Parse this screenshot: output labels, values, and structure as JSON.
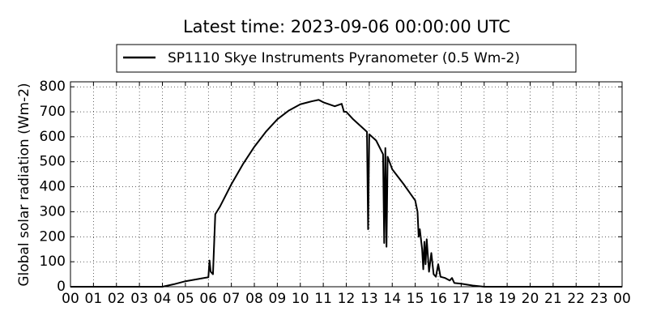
{
  "chart_data": {
    "type": "line",
    "title": "Latest time: 2023-09-06 00:00:00 UTC",
    "y_label": "Global solar radiation (Wm-2)",
    "x": [
      0,
      4.0,
      4.5,
      5.0,
      5.5,
      6.0,
      6.05,
      6.1,
      6.2,
      6.3,
      6.5,
      7,
      7.5,
      8,
      8.5,
      9,
      9.5,
      10,
      10.5,
      10.8,
      11,
      11.5,
      11.8,
      11.9,
      12,
      12.3,
      12.6,
      12.9,
      12.95,
      13.0,
      13.3,
      13.6,
      13.65,
      13.7,
      13.75,
      13.8,
      14,
      14.5,
      15,
      15.1,
      15.15,
      15.2,
      15.3,
      15.35,
      15.4,
      15.45,
      15.5,
      15.6,
      15.7,
      15.8,
      15.9,
      16,
      16.1,
      16.3,
      16.5,
      16.6,
      16.7,
      17,
      17.5,
      18,
      24
    ],
    "series": [
      {
        "name": "SP1110 Skye Instruments Pyranometer (0.5 Wm-2)",
        "color": "#000000",
        "values": [
          0,
          0,
          10,
          22,
          30,
          38,
          105,
          60,
          50,
          290,
          320,
          410,
          490,
          560,
          620,
          670,
          705,
          730,
          742,
          748,
          738,
          722,
          732,
          700,
          700,
          670,
          645,
          620,
          230,
          610,
          585,
          530,
          175,
          555,
          160,
          520,
          470,
          410,
          345,
          300,
          200,
          230,
          150,
          70,
          180,
          90,
          190,
          60,
          135,
          50,
          40,
          90,
          40,
          35,
          25,
          35,
          15,
          12,
          5,
          0,
          0
        ]
      }
    ],
    "xlim": [
      0,
      24
    ],
    "xticks": [
      {
        "value": 0,
        "label": "00"
      },
      {
        "value": 1,
        "label": "01"
      },
      {
        "value": 2,
        "label": "02"
      },
      {
        "value": 3,
        "label": "03"
      },
      {
        "value": 4,
        "label": "04"
      },
      {
        "value": 5,
        "label": "05"
      },
      {
        "value": 6,
        "label": "06"
      },
      {
        "value": 7,
        "label": "07"
      },
      {
        "value": 8,
        "label": "08"
      },
      {
        "value": 9,
        "label": "09"
      },
      {
        "value": 10,
        "label": "10"
      },
      {
        "value": 11,
        "label": "11"
      },
      {
        "value": 12,
        "label": "12"
      },
      {
        "value": 13,
        "label": "13"
      },
      {
        "value": 14,
        "label": "14"
      },
      {
        "value": 15,
        "label": "15"
      },
      {
        "value": 16,
        "label": "16"
      },
      {
        "value": 17,
        "label": "17"
      },
      {
        "value": 18,
        "label": "18"
      },
      {
        "value": 19,
        "label": "19"
      },
      {
        "value": 20,
        "label": "20"
      },
      {
        "value": 21,
        "label": "21"
      },
      {
        "value": 22,
        "label": "22"
      },
      {
        "value": 23,
        "label": "23"
      },
      {
        "value": 24,
        "label": "00"
      }
    ],
    "ylim": [
      0,
      820
    ],
    "yticks": [
      0,
      100,
      200,
      300,
      400,
      500,
      600,
      700,
      800
    ],
    "grid": true
  }
}
